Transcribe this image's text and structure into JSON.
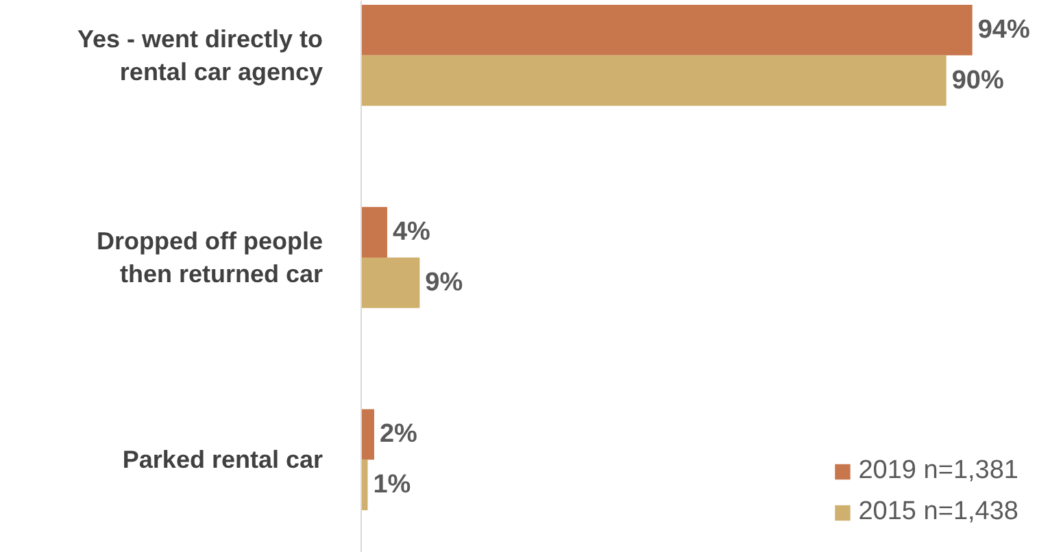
{
  "chart_data": {
    "type": "bar",
    "orientation": "horizontal",
    "categories": [
      "Yes - went directly to rental car agency",
      "Dropped off people then returned car",
      "Parked rental car"
    ],
    "series": [
      {
        "name": "2019 n=1,381",
        "color": "#c8764b",
        "values": [
          94,
          4,
          2
        ],
        "value_labels": [
          "94%",
          "4%",
          "2%"
        ]
      },
      {
        "name": "2015 n=1,438",
        "color": "#d0b06e",
        "values": [
          90,
          9,
          1
        ],
        "value_labels": [
          "90%",
          "9%",
          "1%"
        ]
      }
    ],
    "legend": "bottom right",
    "grid": false
  }
}
